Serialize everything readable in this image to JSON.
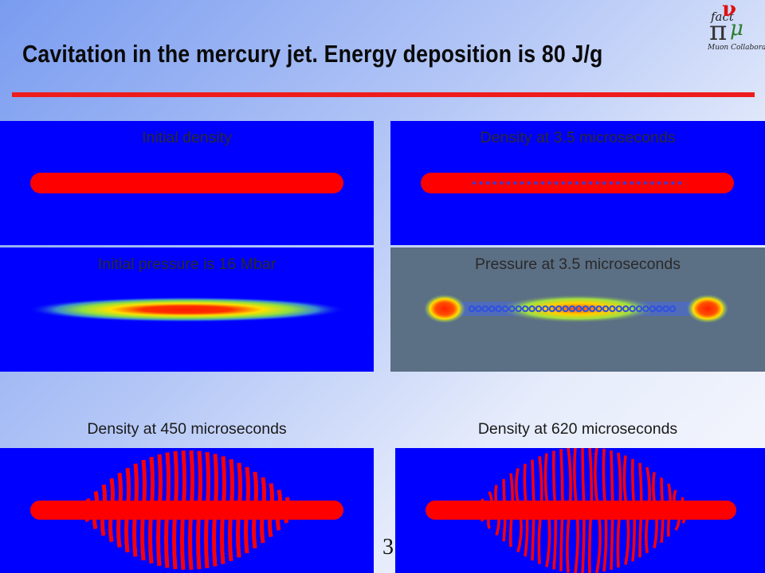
{
  "slide": {
    "title": "Cavitation in the mercury jet. Energy deposition is 80 J/g",
    "page_number": "3"
  },
  "logo": {
    "fact": "fact",
    "pi": "π",
    "nu": "ν",
    "mu": "μ",
    "collab": "Muon Collaboration"
  },
  "panels": [
    {
      "caption": "Initial density"
    },
    {
      "caption": "Density at 3.5 microseconds"
    },
    {
      "caption": "Initial pressure is 16 Mbar"
    },
    {
      "caption": "Pressure at 3.5 microseconds"
    },
    {
      "caption": "Density at 450 microseconds"
    },
    {
      "caption": "Density at 620 microseconds"
    }
  ],
  "colors": {
    "panel_blue": "#0000ff",
    "panel_gray": "#5b6f85",
    "jet_red": "#ff0000",
    "rule_red": "#ee1c1c"
  }
}
